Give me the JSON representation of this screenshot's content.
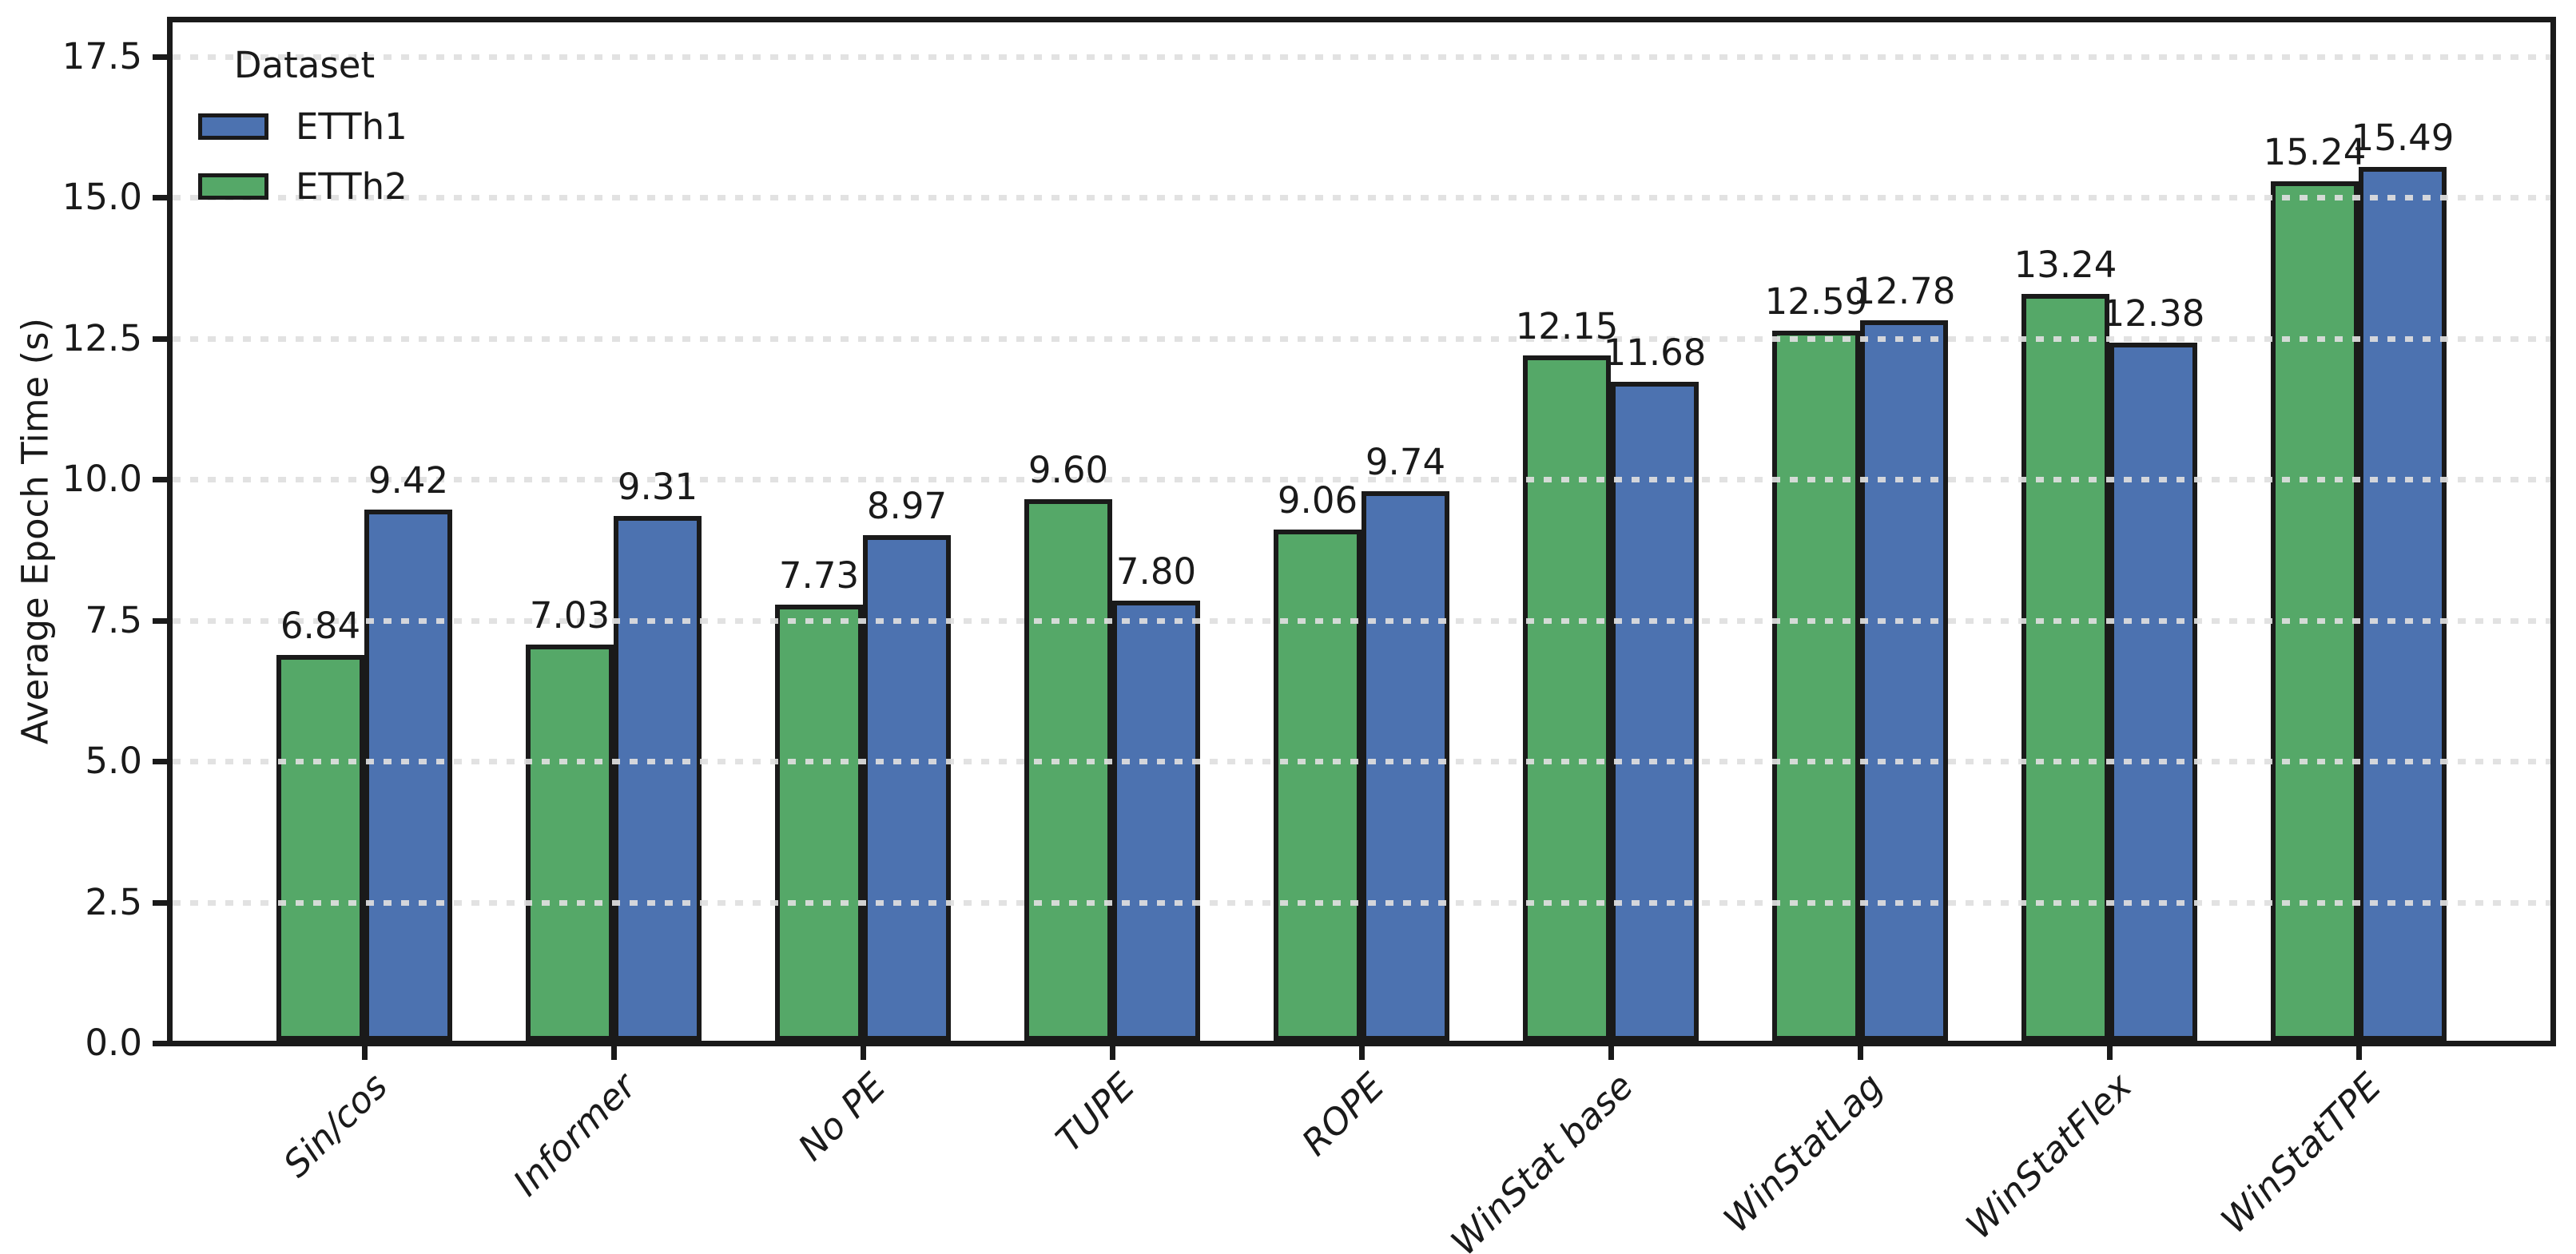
{
  "figure": {
    "background": "#ffffff",
    "text_color": "#1a1a1a"
  },
  "legend": {
    "title": "Dataset",
    "entries": [
      {
        "label": "ETTh1",
        "color": "#4C72B0"
      },
      {
        "label": "ETTh2",
        "color": "#55A868"
      }
    ]
  },
  "chart_data": {
    "type": "bar",
    "title": "",
    "xlabel": "",
    "ylabel": "Average Epoch Time (s)",
    "categories": [
      "Sin/cos",
      "Informer",
      "No PE",
      "TUPE",
      "ROPE",
      "WinStat base",
      "WinStatLag",
      "WinStatFlex",
      "WinStatTPE"
    ],
    "series": [
      {
        "name": "ETTh1",
        "color": "#4C72B0",
        "values": [
          9.42,
          9.31,
          8.97,
          7.8,
          9.74,
          11.68,
          12.78,
          12.38,
          15.49
        ]
      },
      {
        "name": "ETTh2",
        "color": "#55A868",
        "values": [
          6.84,
          7.03,
          7.73,
          9.6,
          9.06,
          12.15,
          12.59,
          13.24,
          15.24
        ]
      }
    ],
    "bar_draw_order": [
      "ETTh2",
      "ETTh1"
    ],
    "value_labels": true,
    "value_label_format": "2dp",
    "yticks": [
      0.0,
      2.5,
      5.0,
      7.5,
      10.0,
      12.5,
      15.0,
      17.5
    ],
    "ytick_labels": [
      "0.0",
      "2.5",
      "5.0",
      "7.5",
      "10.0",
      "12.5",
      "15.0",
      "17.5"
    ],
    "ylim": [
      0,
      18.1
    ],
    "grid": "horizontal-dashed",
    "grid_color": "#dfdfdf",
    "grid_above_bars": true,
    "bar_edge_color": "#1a1a1a",
    "legend_position": "upper-left",
    "legend_title": "Dataset"
  }
}
